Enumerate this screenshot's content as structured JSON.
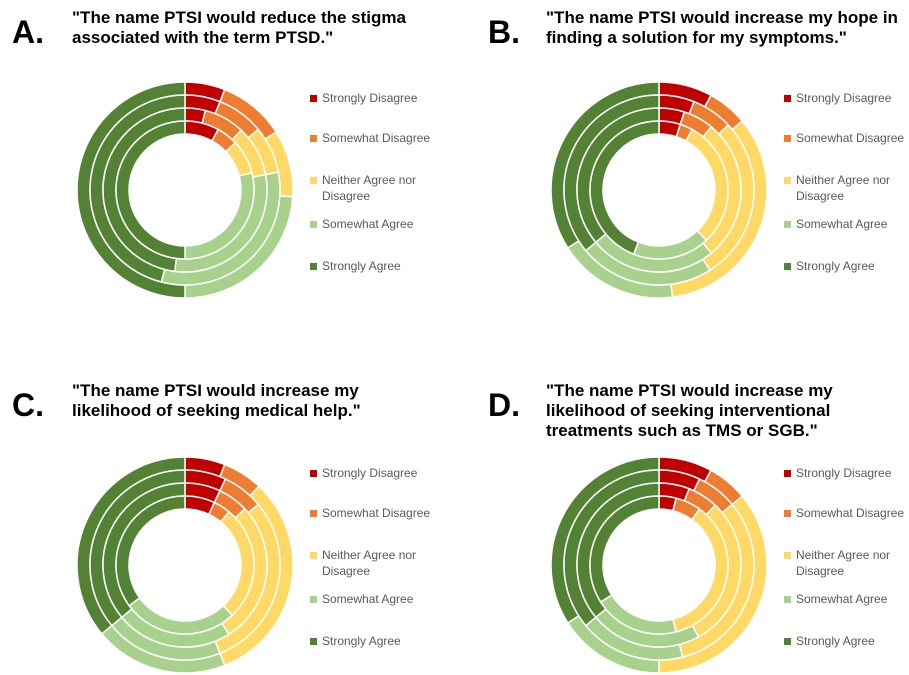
{
  "panels": [
    {
      "letter": "A.",
      "title": "\"The name PTSI would reduce the stigma associated with the term PTSD.\""
    },
    {
      "letter": "B.",
      "title": "\"The name PTSI would increase my hope in finding a solution for my symptoms.\""
    },
    {
      "letter": "C.",
      "title": "\"The name PTSI would increase my likelihood of seeking medical help.\""
    },
    {
      "letter": "D.",
      "title": "\"The name PTSI would increase my likelihood of seeking interventional treatments such as TMS or SGB.\""
    }
  ],
  "legend": {
    "items": [
      {
        "label": "Strongly Disagree",
        "color": "#C00000"
      },
      {
        "label": "Somewhat Disagree",
        "color": "#ED7D31"
      },
      {
        "label": "Neither Agree nor Disagree",
        "color": "#FFD966"
      },
      {
        "label": "Somewhat Agree",
        "color": "#A9D18E"
      },
      {
        "label": "Strongly Agree",
        "color": "#548235"
      }
    ]
  },
  "chart_data": [
    {
      "type": "donut",
      "title": "\"The name PTSI would reduce the stigma associated with the term PTSD.\"",
      "categories": [
        "Strongly Disagree",
        "Somewhat Disagree",
        "Neither Agree nor Disagree",
        "Somewhat Agree",
        "Strongly Agree"
      ],
      "rings": [
        {
          "values": [
            6,
            10,
            10,
            24,
            50
          ]
        },
        {
          "values": [
            6,
            8,
            8,
            32,
            46
          ]
        },
        {
          "values": [
            4,
            8,
            10,
            30,
            48
          ]
        },
        {
          "values": [
            8,
            5,
            8,
            29,
            50
          ]
        }
      ]
    },
    {
      "type": "donut",
      "title": "\"The name PTSI would increase my hope in finding a solution for my symptoms.\"",
      "categories": [
        "Strongly Disagree",
        "Somewhat Disagree",
        "Neither Agree nor Disagree",
        "Somewhat Agree",
        "Strongly Agree"
      ],
      "rings": [
        {
          "values": [
            8,
            6,
            34,
            18,
            34
          ]
        },
        {
          "values": [
            6,
            7,
            28,
            23,
            36
          ]
        },
        {
          "values": [
            5,
            6,
            28,
            25,
            36
          ]
        },
        {
          "values": [
            5,
            3,
            30,
            18,
            44
          ]
        }
      ]
    },
    {
      "type": "donut",
      "title": "\"The name PTSI would increase my likelihood of seeking medical help.\"",
      "categories": [
        "Strongly Disagree",
        "Somewhat Disagree",
        "Neither Agree nor Disagree",
        "Somewhat Agree",
        "Strongly Agree"
      ],
      "rings": [
        {
          "values": [
            6,
            6,
            32,
            20,
            36
          ]
        },
        {
          "values": [
            7,
            7,
            30,
            20,
            36
          ]
        },
        {
          "values": [
            7,
            6,
            28,
            23,
            36
          ]
        },
        {
          "values": [
            7,
            4,
            27,
            27,
            35
          ]
        }
      ]
    },
    {
      "type": "donut",
      "title": "\"The name PTSI would increase my likelihood of seeking interventional treatments such as TMS or SGB.\"",
      "categories": [
        "Strongly Disagree",
        "Somewhat Disagree",
        "Neither Agree nor Disagree",
        "Somewhat Agree",
        "Strongly Agree"
      ],
      "rings": [
        {
          "values": [
            8,
            6,
            36,
            16,
            34
          ]
        },
        {
          "values": [
            7,
            7,
            32,
            18,
            36
          ]
        },
        {
          "values": [
            6,
            6,
            30,
            22,
            36
          ]
        },
        {
          "values": [
            4,
            6,
            36,
            20,
            34
          ]
        }
      ]
    }
  ]
}
